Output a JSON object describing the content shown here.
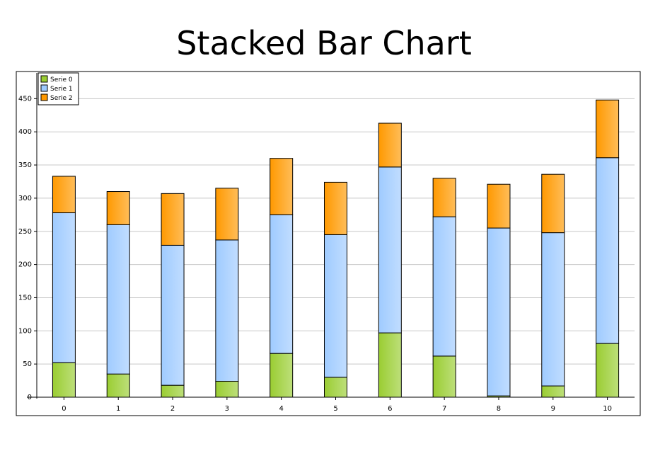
{
  "chart_data": {
    "type": "bar",
    "stacked": true,
    "title": "Stacked Bar Chart",
    "xlabel": "",
    "ylabel": "",
    "categories": [
      "0",
      "1",
      "2",
      "3",
      "4",
      "5",
      "6",
      "7",
      "8",
      "9",
      "10"
    ],
    "series": [
      {
        "name": "Serie 0",
        "values": [
          52,
          35,
          18,
          24,
          66,
          30,
          97,
          62,
          2,
          17,
          81
        ],
        "color": "#9acd32"
      },
      {
        "name": "Serie 1",
        "values": [
          226,
          225,
          211,
          213,
          209,
          215,
          250,
          210,
          253,
          231,
          280
        ],
        "color": "#9fcbff"
      },
      {
        "name": "Serie 2",
        "values": [
          55,
          50,
          78,
          78,
          85,
          79,
          66,
          58,
          66,
          88,
          87
        ],
        "color": "#ff9900"
      }
    ],
    "ylim": [
      0,
      480
    ],
    "yticks": [
      0,
      50,
      100,
      150,
      200,
      250,
      300,
      350,
      400,
      450
    ],
    "grid": true,
    "legend_position": "top-left"
  }
}
